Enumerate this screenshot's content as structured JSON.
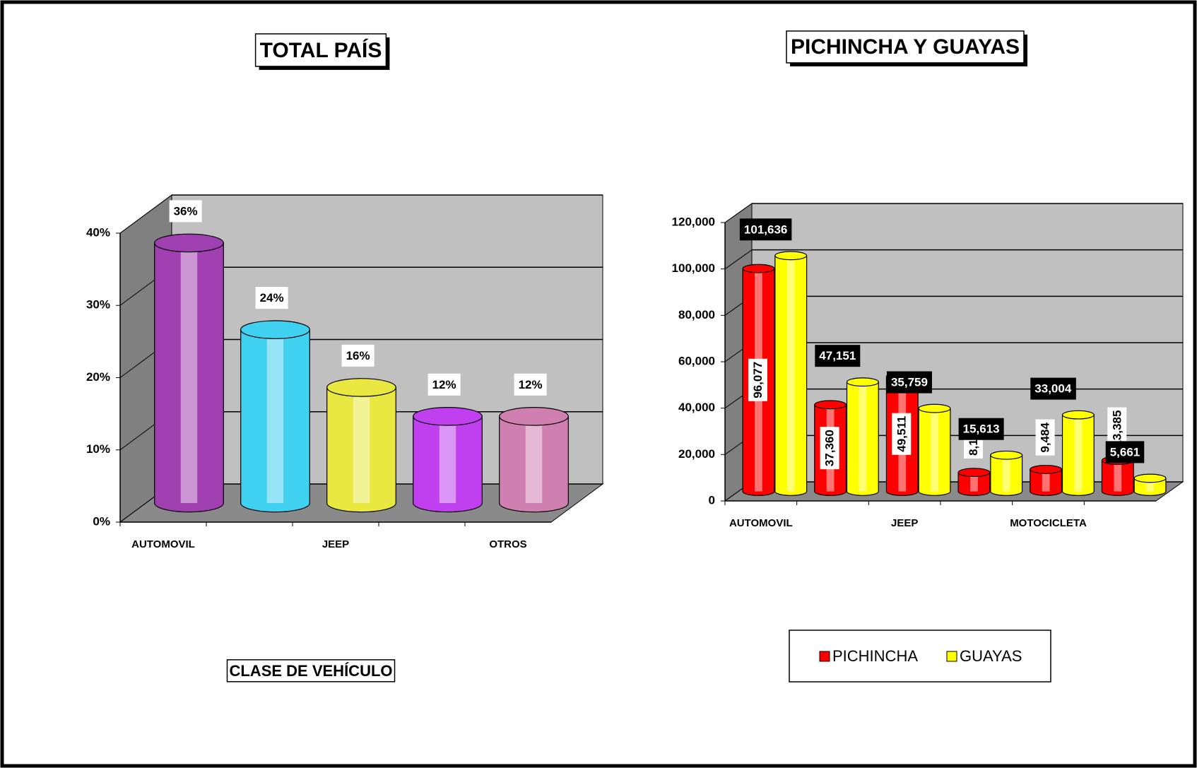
{
  "chart_data": [
    {
      "type": "bar",
      "title": "TOTAL PAÍS",
      "x_label": "CLASE DE VEHÍCULO",
      "categories": [
        "AUTOMOVIL",
        null,
        "JEEP",
        null,
        "OTROS"
      ],
      "values": [
        36,
        24,
        16,
        12,
        12
      ],
      "value_labels": [
        "36%",
        "24%",
        "16%",
        "12%",
        "12%"
      ],
      "colors": [
        "#a040b0",
        "#40d0f0",
        "#e8e840",
        "#c040f0",
        "#d080b0"
      ],
      "ylim": [
        0,
        40
      ],
      "yticks": [
        {
          "value": 0,
          "label": "0%"
        },
        {
          "value": 10,
          "label": "10%"
        },
        {
          "value": 20,
          "label": "20%"
        },
        {
          "value": 30,
          "label": "30%"
        },
        {
          "value": 40,
          "label": "40%"
        }
      ],
      "grid": true
    },
    {
      "type": "bar",
      "title": "PICHINCHA Y GUAYAS",
      "categories": [
        "AUTOMOVIL",
        null,
        "JEEP",
        null,
        "MOTOCICLETA",
        null
      ],
      "series": [
        {
          "name": "PICHINCHA",
          "color": "#ff0000",
          "values": [
            96077,
            37360,
            49511,
            8182,
            9484,
            13385
          ],
          "value_labels": [
            "96,077",
            "37,360",
            "49,511",
            "8,182",
            "9,484",
            "13,385"
          ]
        },
        {
          "name": "GUAYAS",
          "color": "#ffff00",
          "values": [
            101636,
            47151,
            35759,
            15613,
            33004,
            5661
          ],
          "value_labels": [
            "101,636",
            "47,151",
            "35,759",
            "15,613",
            "33,004",
            "5,661"
          ]
        }
      ],
      "ylim": [
        0,
        120000
      ],
      "yticks": [
        0,
        {
          "value": 20000,
          "label": "20,000"
        },
        {
          "value": 40000,
          "label": "40,000"
        },
        {
          "value": 60000,
          "label": "60,000"
        },
        {
          "value": 80000,
          "label": "80,000"
        },
        {
          "value": 100000,
          "label": "100,000"
        },
        {
          "value": 120000,
          "label": "120,000"
        }
      ],
      "grid": true,
      "legend": "bottom"
    }
  ]
}
